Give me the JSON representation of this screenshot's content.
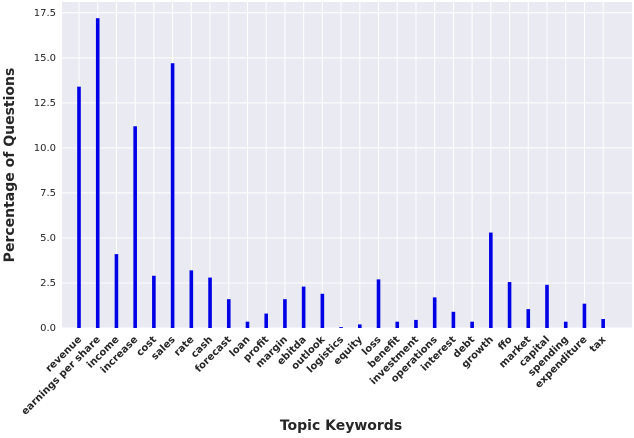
{
  "chart_data": {
    "type": "bar",
    "x_label": "Topic Keywords",
    "y_label": "Percentage of Questions",
    "categories": [
      "revenue",
      "earnings per share",
      "income",
      "increase",
      "cost",
      "sales",
      "rate",
      "cash",
      "forecast",
      "loan",
      "profit",
      "margin",
      "ebitda",
      "outlook",
      "logistics",
      "equity",
      "loss",
      "benefit",
      "investment",
      "operations",
      "interest",
      "debt",
      "growth",
      "ffo",
      "market",
      "capital",
      "spending",
      "expenditure",
      "tax"
    ],
    "values": [
      13.4,
      17.2,
      4.1,
      11.2,
      2.9,
      14.7,
      3.2,
      2.8,
      1.6,
      0.35,
      0.8,
      1.6,
      2.3,
      1.9,
      0.05,
      0.2,
      2.7,
      0.35,
      0.45,
      1.7,
      0.9,
      0.35,
      5.3,
      2.55,
      1.05,
      2.4,
      0.35,
      1.35,
      0.5
    ],
    "color": "#0000e6",
    "ylim": [
      0,
      18.1
    ],
    "yticks": [
      {
        "value": 0,
        "label": "0.0"
      },
      {
        "value": 2.5,
        "label": "2.5"
      },
      {
        "value": 5,
        "label": "5.0"
      },
      {
        "value": 7.5,
        "label": "7.5"
      },
      {
        "value": 10,
        "label": "10.0"
      },
      {
        "value": 12.5,
        "label": "12.5"
      },
      {
        "value": 15,
        "label": "15.0"
      },
      {
        "value": 17.5,
        "label": "17.5"
      }
    ],
    "grid": true
  }
}
